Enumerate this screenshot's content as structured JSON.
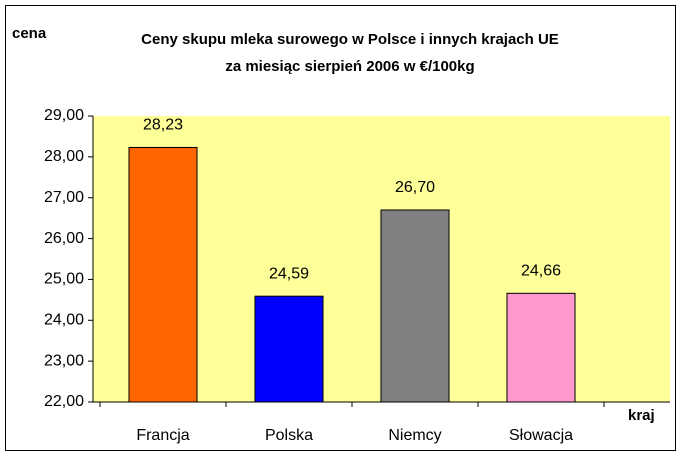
{
  "chart_data": {
    "type": "bar",
    "title": "Ceny skupu mleka surowego w Polsce i innych krajach UE",
    "subtitle": "za miesiąc sierpień 2006 w €/100kg",
    "y_label": "cena",
    "x_label": "kraj",
    "categories": [
      "Francja",
      "Polska",
      "Niemcy",
      "Słowacja"
    ],
    "values": [
      28.23,
      24.59,
      26.7,
      24.66
    ],
    "value_labels": [
      "28,23",
      "24,59",
      "26,70",
      "24,66"
    ],
    "colors": [
      "#ff6600",
      "#0000ff",
      "#808080",
      "#ff99cc"
    ],
    "ylim": [
      22,
      29
    ],
    "yticks": [
      {
        "value": 22,
        "label": "22,00"
      },
      {
        "value": 23,
        "label": "23,00"
      },
      {
        "value": 24,
        "label": "24,00"
      },
      {
        "value": 25,
        "label": "25,00"
      },
      {
        "value": 26,
        "label": "26,00"
      },
      {
        "value": 27,
        "label": "27,00"
      },
      {
        "value": 28,
        "label": "28,00"
      },
      {
        "value": 29,
        "label": "29,00"
      }
    ],
    "grid": false
  }
}
